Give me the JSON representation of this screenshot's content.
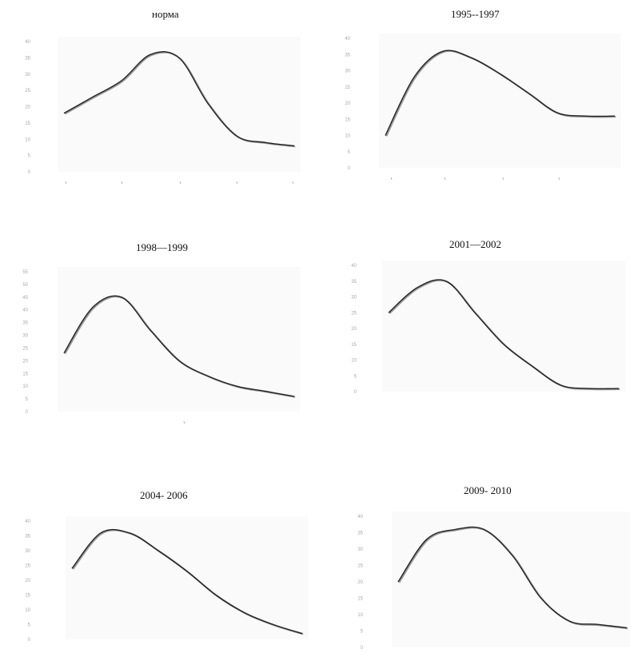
{
  "chart_data": [
    {
      "type": "line",
      "title": "норма",
      "xlabel": "",
      "ylabel": "",
      "ylim": [
        0,
        40
      ],
      "yticks": [
        "40",
        "35",
        "30",
        "25",
        "20",
        "15",
        "10",
        "5",
        "0"
      ],
      "x": [
        1,
        1.5,
        2,
        2.5,
        3,
        3.5,
        4,
        4.5,
        5
      ],
      "values": [
        18,
        23,
        28,
        36,
        35,
        21,
        11,
        9,
        8
      ],
      "color": "#222222"
    },
    {
      "type": "line",
      "title": "1995--1997",
      "xlabel": "",
      "ylabel": "",
      "ylim": [
        0,
        40
      ],
      "yticks": [
        "40",
        "35",
        "30",
        "25",
        "20",
        "15",
        "10",
        "5",
        "0"
      ],
      "x": [
        1,
        1.5,
        2,
        2.5,
        3,
        3.5,
        4,
        4.5,
        5
      ],
      "values": [
        10,
        28,
        36,
        34,
        29,
        23,
        17,
        16,
        16
      ],
      "color": "#222222"
    },
    {
      "type": "line",
      "title": "1998—1999",
      "xlabel": "",
      "ylabel": "",
      "ylim": [
        0,
        55
      ],
      "yticks": [
        "55",
        "50",
        "45",
        "40",
        "35",
        "30",
        "25",
        "20",
        "15",
        "10",
        "5",
        "0"
      ],
      "x": [
        1,
        1.5,
        2,
        2.5,
        3,
        3.5,
        4,
        4.5,
        5
      ],
      "values": [
        23,
        41,
        45,
        32,
        20,
        14,
        10,
        8,
        6
      ],
      "color": "#222222"
    },
    {
      "type": "line",
      "title": "2001—2002",
      "xlabel": "",
      "ylabel": "",
      "ylim": [
        0,
        40
      ],
      "yticks": [
        "40",
        "35",
        "30",
        "25",
        "20",
        "15",
        "10",
        "5",
        "0"
      ],
      "x": [
        1,
        1.5,
        2,
        2.5,
        3,
        3.5,
        4,
        4.5,
        5
      ],
      "values": [
        25,
        33,
        35,
        25,
        15,
        8,
        2,
        1,
        1
      ],
      "color": "#222222"
    },
    {
      "type": "line",
      "title": "2004- 2006",
      "xlabel": "",
      "ylabel": "",
      "ylim": [
        0,
        40
      ],
      "yticks": [
        "40",
        "35",
        "30",
        "25",
        "20",
        "15",
        "10",
        "5",
        "0"
      ],
      "x": [
        1,
        1.5,
        2,
        2.5,
        3,
        3.5,
        4,
        4.5,
        5
      ],
      "values": [
        24,
        36,
        36,
        30,
        23,
        15,
        9,
        5,
        2
      ],
      "color": "#222222"
    },
    {
      "type": "line",
      "title": "2009- 2010",
      "xlabel": "",
      "ylabel": "",
      "ylim": [
        0,
        40
      ],
      "yticks": [
        "40",
        "35",
        "30",
        "25",
        "20",
        "15",
        "10",
        "5",
        "0"
      ],
      "x": [
        1,
        1.5,
        2,
        2.5,
        3,
        3.5,
        4,
        4.5,
        5
      ],
      "values": [
        20,
        33,
        36,
        36,
        28,
        15,
        8,
        7,
        6
      ],
      "color": "#222222"
    }
  ]
}
